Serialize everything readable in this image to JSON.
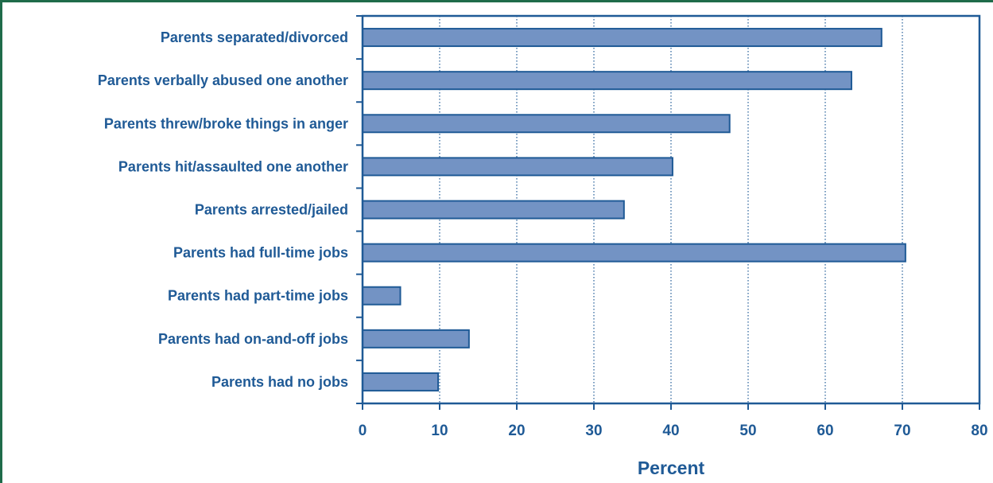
{
  "chart_data": {
    "type": "bar",
    "orientation": "horizontal",
    "categories": [
      "Parents separated/divorced",
      "Parents verbally abused one another",
      "Parents threw/broke things in anger",
      "Parents hit/assaulted one another",
      "Parents arrested/jailed",
      "Parents had full-time jobs",
      "Parents had part-time jobs",
      "Parents had on-and-off jobs",
      "Parents had no jobs"
    ],
    "values": [
      67.3,
      63.4,
      47.6,
      40.2,
      33.9,
      70.4,
      4.9,
      13.8,
      9.8
    ],
    "xlabel": "Percent",
    "xlim": [
      0,
      80
    ],
    "xticks": [
      0,
      10,
      20,
      30,
      40,
      50,
      60,
      70,
      80
    ],
    "grid": "vertical dotted",
    "colors": {
      "bar_fill": "#7393c4",
      "bar_stroke": "#1f5a96",
      "text": "#1f5a96",
      "axis": "#1f5a96",
      "grid": "#1f5a96",
      "frame": "#1f6b4a"
    }
  }
}
